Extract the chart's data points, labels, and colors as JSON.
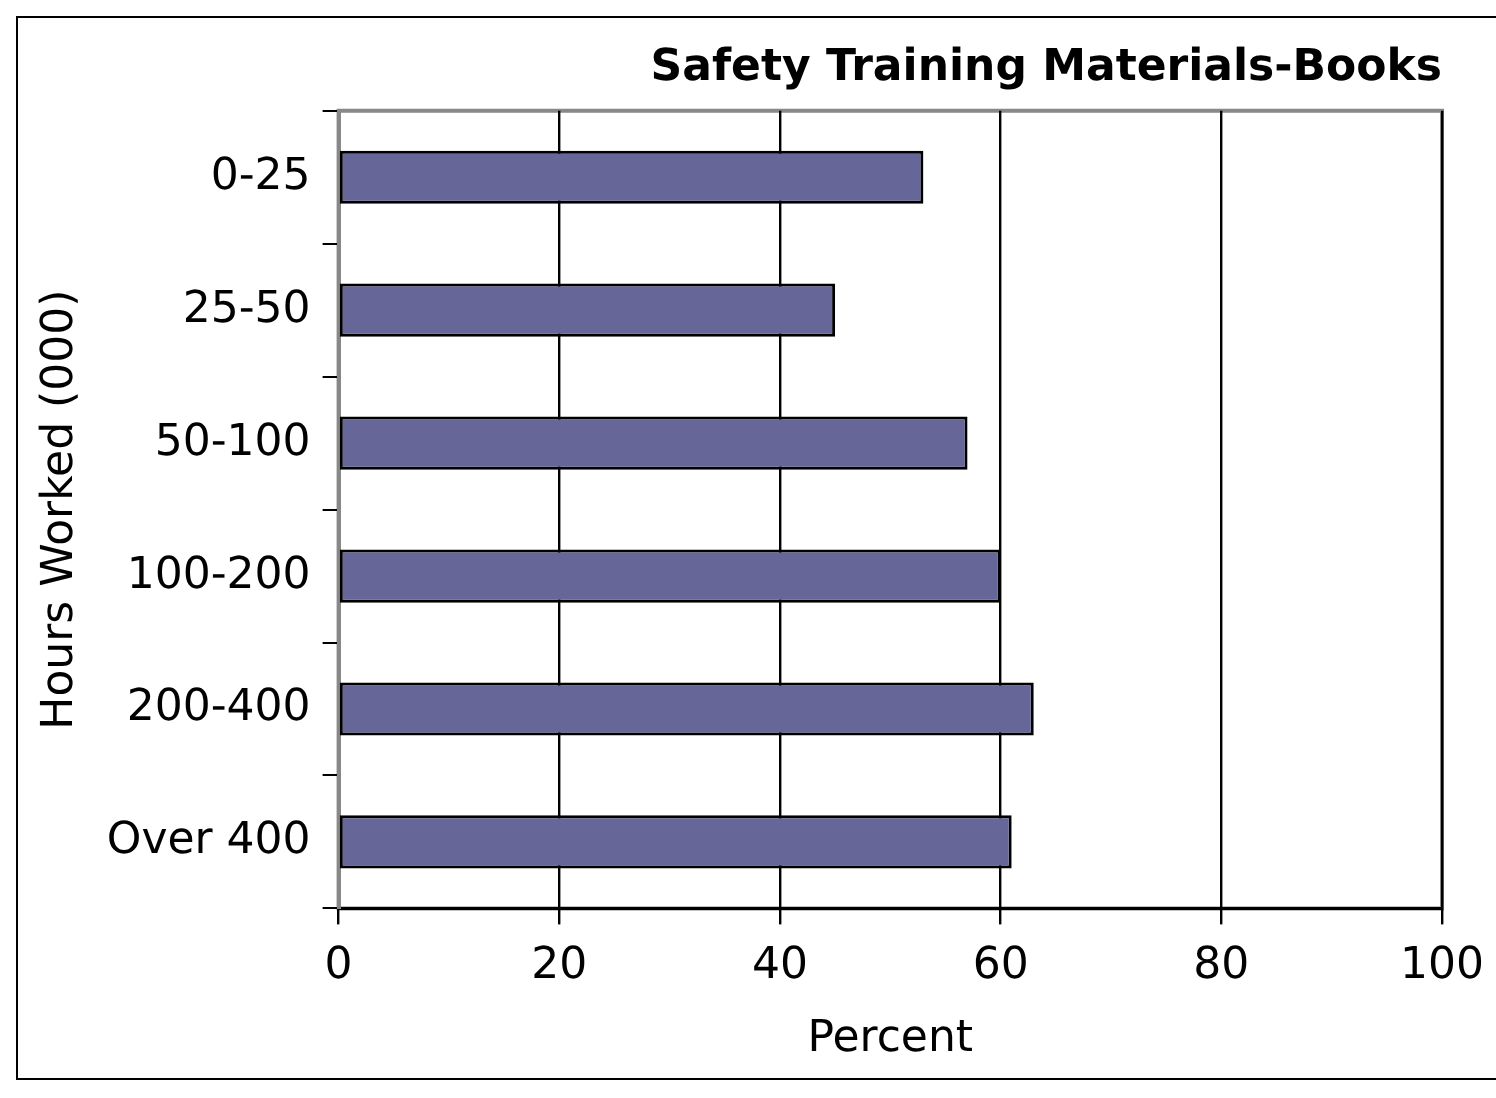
{
  "chart_data": {
    "type": "bar",
    "orientation": "horizontal",
    "title": "Safety Training Materials-Books",
    "xlabel": "Percent",
    "ylabel": "Hours Worked (000)",
    "categories": [
      "0-25",
      "25-50",
      "50-100",
      "100-200",
      "200-400",
      "Over 400"
    ],
    "values": [
      53,
      45,
      57,
      60,
      63,
      61
    ],
    "color": "#666699",
    "xlim": [
      0,
      100
    ],
    "xticks": [
      0,
      20,
      40,
      60,
      80,
      100
    ],
    "grid": "x"
  }
}
